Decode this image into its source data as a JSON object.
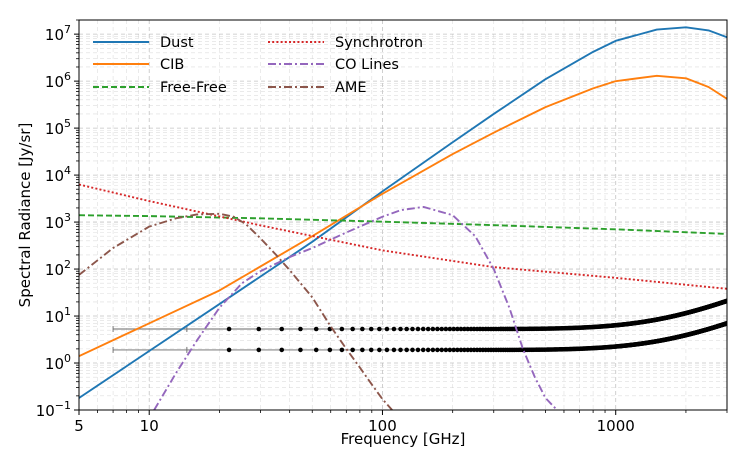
{
  "chart_data": {
    "type": "line",
    "xscale": "log",
    "yscale": "log",
    "xlabel": "Frequency [GHz]",
    "ylabel": "Spectral Radiance [Jy/sr]",
    "xlim": [
      5,
      3000
    ],
    "ylim": [
      0.1,
      20000000
    ],
    "grid": true,
    "legend_position": "top-left",
    "x_ticks": [
      {
        "value": 5,
        "label": "5"
      },
      {
        "value": 10,
        "label": "10"
      },
      {
        "value": 100,
        "label": "100"
      },
      {
        "value": 1000,
        "label": "1000"
      }
    ],
    "y_ticks": [
      {
        "value": 0.1,
        "base": "10",
        "exp": "−1"
      },
      {
        "value": 1,
        "base": "10",
        "exp": "0"
      },
      {
        "value": 10,
        "base": "10",
        "exp": "1"
      },
      {
        "value": 100,
        "base": "10",
        "exp": "2"
      },
      {
        "value": 1000,
        "base": "10",
        "exp": "3"
      },
      {
        "value": 10000,
        "base": "10",
        "exp": "4"
      },
      {
        "value": 100000,
        "base": "10",
        "exp": "5"
      },
      {
        "value": 1000000,
        "base": "10",
        "exp": "6"
      },
      {
        "value": 10000000,
        "base": "10",
        "exp": "7"
      }
    ],
    "series": [
      {
        "name": "Dust",
        "color": "#1f77b4",
        "style": "solid",
        "x": [
          5,
          10,
          20,
          50,
          100,
          200,
          300,
          500,
          800,
          1000,
          1500,
          2000,
          2500,
          3000
        ],
        "y": [
          0.18,
          1.8,
          18,
          380,
          4500,
          50000,
          200000,
          1100000,
          4200000,
          7200000,
          12500000,
          14000000,
          12000000,
          8600000
        ]
      },
      {
        "name": "CIB",
        "color": "#ff7f0e",
        "style": "solid",
        "x": [
          5,
          10,
          20,
          50,
          100,
          200,
          300,
          500,
          800,
          1000,
          1500,
          2000,
          2500,
          3000
        ],
        "y": [
          1.4,
          7,
          35,
          500,
          4000,
          28000,
          80000,
          280000,
          700000,
          1000000,
          1300000,
          1150000,
          750000,
          420000
        ]
      },
      {
        "name": "Free-Free",
        "color": "#2ca02c",
        "style": "dashed",
        "x": [
          5,
          10,
          30,
          100,
          300,
          1000,
          3000
        ],
        "y": [
          1400,
          1340,
          1200,
          1020,
          860,
          700,
          560
        ]
      },
      {
        "name": "Synchrotron",
        "color": "#d62728",
        "style": "dotted",
        "x": [
          5,
          10,
          30,
          100,
          300,
          1000,
          3000
        ],
        "y": [
          6300,
          2800,
          850,
          250,
          110,
          65,
          38
        ]
      },
      {
        "name": "CO Lines",
        "color": "#9467bd",
        "style": "dashdot",
        "x": [
          10.5,
          13,
          16,
          20,
          25,
          30,
          40,
          50,
          70,
          100,
          120,
          150,
          200,
          250,
          300,
          350,
          400,
          450,
          500,
          560
        ],
        "y": [
          0.1,
          0.6,
          3,
          15,
          50,
          90,
          180,
          280,
          600,
          1300,
          1800,
          2100,
          1400,
          500,
          100,
          15,
          2,
          0.5,
          0.18,
          0.1
        ]
      },
      {
        "name": "AME",
        "color": "#8c564b",
        "style": "dashdot",
        "x": [
          5,
          7,
          10,
          13,
          16,
          20,
          23,
          26,
          30,
          35,
          40,
          50,
          60,
          70,
          80,
          90,
          100,
          110
        ],
        "y": [
          75,
          280,
          800,
          1200,
          1450,
          1500,
          1300,
          900,
          450,
          200,
          95,
          25,
          6,
          2,
          0.8,
          0.35,
          0.17,
          0.1
        ]
      }
    ],
    "sensitivity_curves": [
      {
        "name": "upper",
        "color": "#000000",
        "x_start": 7,
        "x_end": 3000,
        "base": 5.3,
        "rise": 21
      },
      {
        "name": "lower",
        "color": "#000000",
        "x_start": 7,
        "x_end": 3000,
        "base": 1.9,
        "rise": 7
      }
    ]
  }
}
